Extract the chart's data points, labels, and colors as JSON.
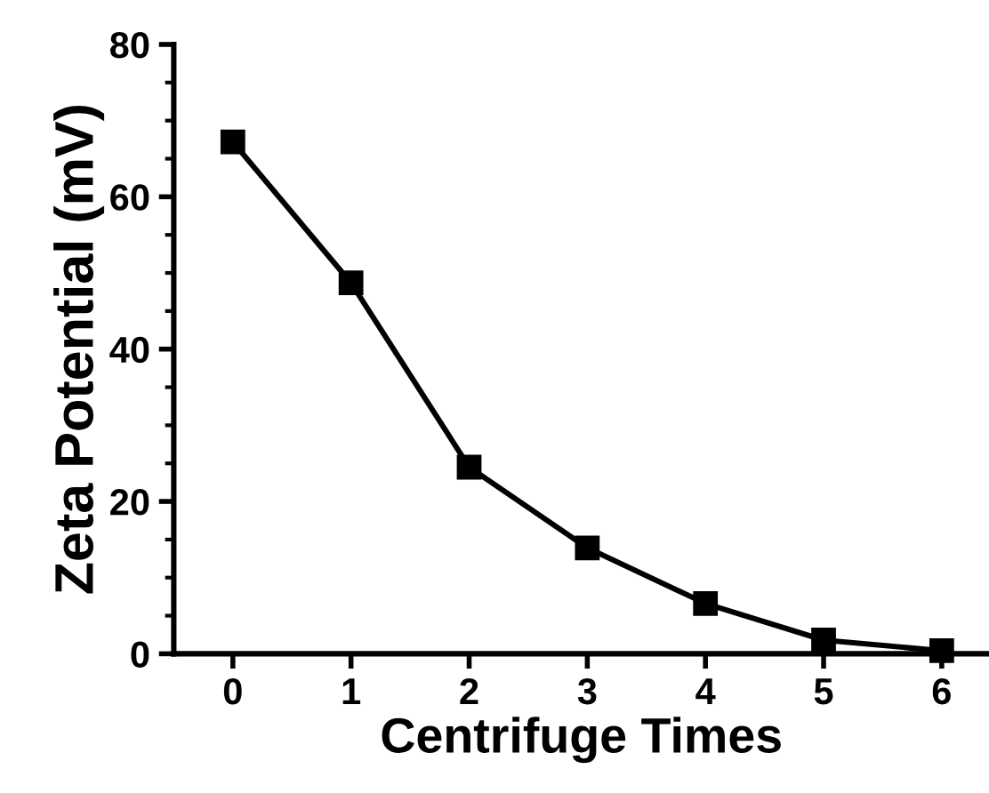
{
  "chart_data": {
    "type": "line",
    "xlabel": "Centrifuge Times",
    "ylabel": "Zeta Potential (mV)",
    "x": [
      0,
      1,
      2,
      3,
      4,
      5,
      6
    ],
    "series": [
      {
        "color": "#000000",
        "values": [
          67.2,
          48.7,
          24.5,
          13.9,
          6.6,
          1.8,
          0.4
        ]
      }
    ],
    "xlim": [
      -0.5,
      6.4
    ],
    "xticks": [
      0,
      1,
      2,
      3,
      4,
      5,
      6
    ],
    "ylim": [
      0,
      80
    ],
    "yticks": [
      0,
      20,
      40,
      60,
      80
    ],
    "marker": "square",
    "line_style": "solid",
    "grid": false,
    "legend": false
  }
}
